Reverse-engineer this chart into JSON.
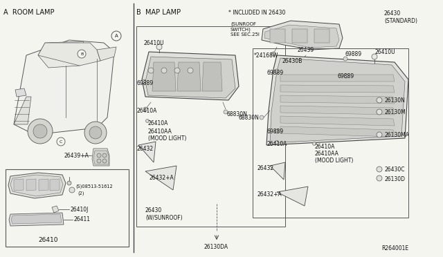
{
  "bg_color": "#f5f5f0",
  "fig_width": 6.4,
  "fig_height": 3.72,
  "dpi": 100,
  "section_a_label": "A  ROOM LAMP",
  "section_b_label": "B  MAP LAMP",
  "included_note": "* INCLUDED IN 26430",
  "standard_label": "26430\n(STANDARD)",
  "sunroof_label": "26430\n(W/SUNROOF)",
  "sunroof_switch": "(SUNROOF\nSWITCH)\nSEE SEC.25I",
  "mood_light1": "(MOOD LIGHT)",
  "mood_light2": "(MOOD LIGHT)",
  "ref_code": "R264001E"
}
